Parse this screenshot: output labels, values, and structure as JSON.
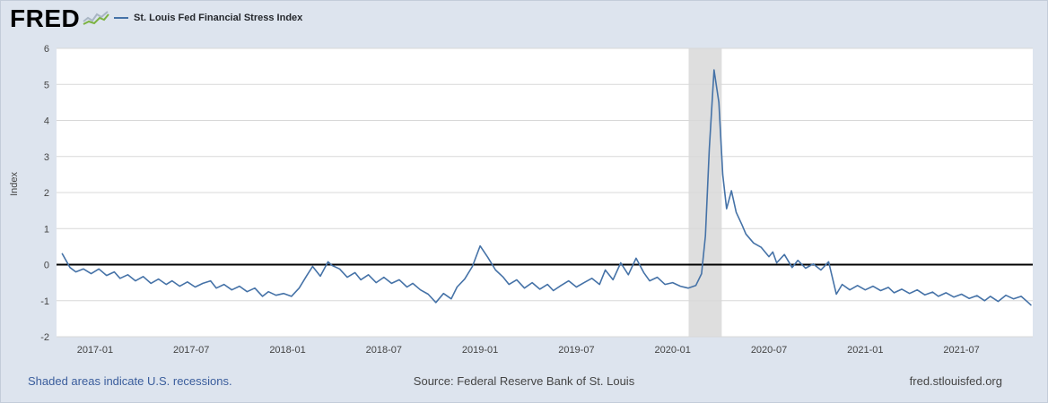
{
  "header": {
    "logo_text": "FRED",
    "logo_spark_gray": "#a9b6c4",
    "logo_spark_green": "#7cb342"
  },
  "chart_data": {
    "type": "line",
    "title": "St. Louis Fed Financial Stress Index",
    "ylabel": "Index",
    "ylim": [
      -2,
      6
    ],
    "yticks": [
      6,
      5,
      4,
      3,
      2,
      1,
      0,
      -1,
      -2
    ],
    "xlim": [
      2016.8,
      2021.87
    ],
    "x_ticks": [
      {
        "pos": 2017.0,
        "label": "2017-01"
      },
      {
        "pos": 2017.5,
        "label": "2017-07"
      },
      {
        "pos": 2018.0,
        "label": "2018-01"
      },
      {
        "pos": 2018.5,
        "label": "2018-07"
      },
      {
        "pos": 2019.0,
        "label": "2019-01"
      },
      {
        "pos": 2019.5,
        "label": "2019-07"
      },
      {
        "pos": 2020.0,
        "label": "2020-01"
      },
      {
        "pos": 2020.5,
        "label": "2020-07"
      },
      {
        "pos": 2021.0,
        "label": "2021-01"
      },
      {
        "pos": 2021.5,
        "label": "2021-07"
      }
    ],
    "grid": "horizontal",
    "legend_position": "top-left",
    "zero_line": true,
    "zero_line_color": "#000000",
    "line_color": "#4572a7",
    "recession_bands": [
      {
        "start": 2020.083,
        "end": 2020.255
      }
    ],
    "series": [
      {
        "name": "St. Louis Fed Financial Stress Index",
        "points": [
          [
            2016.83,
            0.3
          ],
          [
            2016.87,
            -0.08
          ],
          [
            2016.9,
            -0.2
          ],
          [
            2016.94,
            -0.12
          ],
          [
            2016.98,
            -0.25
          ],
          [
            2017.02,
            -0.12
          ],
          [
            2017.06,
            -0.3
          ],
          [
            2017.1,
            -0.2
          ],
          [
            2017.13,
            -0.38
          ],
          [
            2017.17,
            -0.28
          ],
          [
            2017.21,
            -0.45
          ],
          [
            2017.25,
            -0.33
          ],
          [
            2017.29,
            -0.52
          ],
          [
            2017.33,
            -0.4
          ],
          [
            2017.37,
            -0.55
          ],
          [
            2017.4,
            -0.45
          ],
          [
            2017.44,
            -0.6
          ],
          [
            2017.48,
            -0.48
          ],
          [
            2017.52,
            -0.62
          ],
          [
            2017.56,
            -0.52
          ],
          [
            2017.6,
            -0.45
          ],
          [
            2017.63,
            -0.65
          ],
          [
            2017.67,
            -0.55
          ],
          [
            2017.71,
            -0.7
          ],
          [
            2017.75,
            -0.6
          ],
          [
            2017.79,
            -0.75
          ],
          [
            2017.83,
            -0.65
          ],
          [
            2017.87,
            -0.88
          ],
          [
            2017.9,
            -0.75
          ],
          [
            2017.94,
            -0.85
          ],
          [
            2017.98,
            -0.8
          ],
          [
            2018.02,
            -0.88
          ],
          [
            2018.06,
            -0.65
          ],
          [
            2018.1,
            -0.3
          ],
          [
            2018.13,
            -0.05
          ],
          [
            2018.17,
            -0.32
          ],
          [
            2018.21,
            0.08
          ],
          [
            2018.23,
            -0.02
          ],
          [
            2018.27,
            -0.12
          ],
          [
            2018.31,
            -0.35
          ],
          [
            2018.35,
            -0.22
          ],
          [
            2018.38,
            -0.42
          ],
          [
            2018.42,
            -0.28
          ],
          [
            2018.46,
            -0.5
          ],
          [
            2018.5,
            -0.35
          ],
          [
            2018.54,
            -0.52
          ],
          [
            2018.58,
            -0.42
          ],
          [
            2018.62,
            -0.62
          ],
          [
            2018.65,
            -0.52
          ],
          [
            2018.69,
            -0.7
          ],
          [
            2018.73,
            -0.82
          ],
          [
            2018.77,
            -1.05
          ],
          [
            2018.81,
            -0.8
          ],
          [
            2018.85,
            -0.95
          ],
          [
            2018.88,
            -0.62
          ],
          [
            2018.92,
            -0.4
          ],
          [
            2018.96,
            -0.05
          ],
          [
            2019.0,
            0.52
          ],
          [
            2019.04,
            0.2
          ],
          [
            2019.08,
            -0.15
          ],
          [
            2019.12,
            -0.35
          ],
          [
            2019.15,
            -0.55
          ],
          [
            2019.19,
            -0.42
          ],
          [
            2019.23,
            -0.65
          ],
          [
            2019.27,
            -0.5
          ],
          [
            2019.31,
            -0.68
          ],
          [
            2019.35,
            -0.55
          ],
          [
            2019.38,
            -0.72
          ],
          [
            2019.42,
            -0.58
          ],
          [
            2019.46,
            -0.45
          ],
          [
            2019.5,
            -0.62
          ],
          [
            2019.54,
            -0.5
          ],
          [
            2019.58,
            -0.38
          ],
          [
            2019.62,
            -0.55
          ],
          [
            2019.65,
            -0.15
          ],
          [
            2019.69,
            -0.42
          ],
          [
            2019.73,
            0.05
          ],
          [
            2019.77,
            -0.28
          ],
          [
            2019.81,
            0.18
          ],
          [
            2019.85,
            -0.22
          ],
          [
            2019.88,
            -0.45
          ],
          [
            2019.92,
            -0.35
          ],
          [
            2019.96,
            -0.55
          ],
          [
            2020.0,
            -0.5
          ],
          [
            2020.04,
            -0.6
          ],
          [
            2020.08,
            -0.65
          ],
          [
            2020.12,
            -0.58
          ],
          [
            2020.15,
            -0.25
          ],
          [
            2020.17,
            0.8
          ],
          [
            2020.19,
            3.2
          ],
          [
            2020.215,
            5.4
          ],
          [
            2020.24,
            4.5
          ],
          [
            2020.26,
            2.5
          ],
          [
            2020.28,
            1.55
          ],
          [
            2020.305,
            2.05
          ],
          [
            2020.33,
            1.45
          ],
          [
            2020.36,
            1.1
          ],
          [
            2020.38,
            0.85
          ],
          [
            2020.42,
            0.6
          ],
          [
            2020.46,
            0.48
          ],
          [
            2020.5,
            0.22
          ],
          [
            2020.52,
            0.35
          ],
          [
            2020.54,
            0.05
          ],
          [
            2020.58,
            0.28
          ],
          [
            2020.62,
            -0.08
          ],
          [
            2020.65,
            0.12
          ],
          [
            2020.69,
            -0.1
          ],
          [
            2020.73,
            0.02
          ],
          [
            2020.77,
            -0.15
          ],
          [
            2020.81,
            0.08
          ],
          [
            2020.85,
            -0.82
          ],
          [
            2020.88,
            -0.55
          ],
          [
            2020.92,
            -0.7
          ],
          [
            2020.96,
            -0.58
          ],
          [
            2021.0,
            -0.7
          ],
          [
            2021.04,
            -0.6
          ],
          [
            2021.08,
            -0.72
          ],
          [
            2021.12,
            -0.63
          ],
          [
            2021.15,
            -0.78
          ],
          [
            2021.19,
            -0.68
          ],
          [
            2021.23,
            -0.8
          ],
          [
            2021.27,
            -0.7
          ],
          [
            2021.31,
            -0.84
          ],
          [
            2021.35,
            -0.76
          ],
          [
            2021.38,
            -0.88
          ],
          [
            2021.42,
            -0.78
          ],
          [
            2021.46,
            -0.9
          ],
          [
            2021.5,
            -0.82
          ],
          [
            2021.54,
            -0.94
          ],
          [
            2021.58,
            -0.86
          ],
          [
            2021.62,
            -1.0
          ],
          [
            2021.65,
            -0.88
          ],
          [
            2021.69,
            -1.02
          ],
          [
            2021.73,
            -0.85
          ],
          [
            2021.77,
            -0.95
          ],
          [
            2021.81,
            -0.88
          ],
          [
            2021.84,
            -1.02
          ],
          [
            2021.86,
            -1.12
          ]
        ]
      }
    ]
  },
  "footer": {
    "recessions_note": "Shaded areas indicate U.S. recessions.",
    "source": "Source: Federal Reserve Bank of St. Louis",
    "site": "fred.stlouisfed.org"
  },
  "colors": {
    "page_bg": "#dde4ee",
    "plot_bg": "#ffffff",
    "grid": "#d8d8d8",
    "recession_band": "#dedede",
    "tick_text": "#444444",
    "link_blue": "#3a5d9c"
  }
}
